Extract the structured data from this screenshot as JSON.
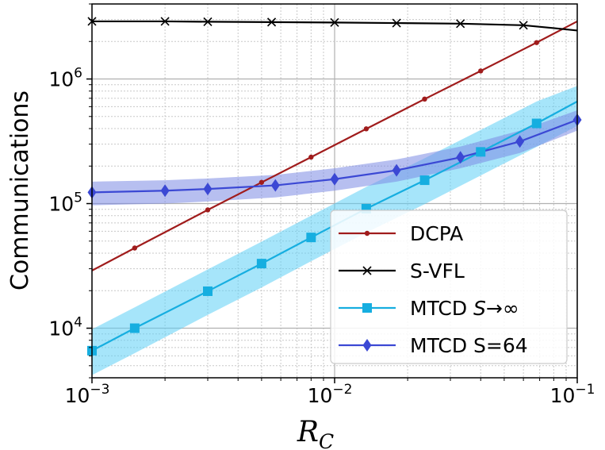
{
  "chart_data": {
    "type": "line",
    "title": "",
    "xlabel": "R",
    "xlabel_sub": "C",
    "ylabel": "Communications",
    "xscale": "log",
    "yscale": "log",
    "xlim": [
      0.001,
      0.1
    ],
    "ylim": [
      4000,
      4000000
    ],
    "grid": true,
    "legend_position": "lower-right",
    "x_ticks": [
      {
        "base": "10",
        "exp": "−3",
        "value": 0.001
      },
      {
        "base": "10",
        "exp": "−2",
        "value": 0.01
      },
      {
        "base": "10",
        "exp": "−1",
        "value": 0.1
      }
    ],
    "y_ticks": [
      {
        "base": "10",
        "exp": "4",
        "value": 10000
      },
      {
        "base": "10",
        "exp": "5",
        "value": 100000
      },
      {
        "base": "10",
        "exp": "6",
        "value": 1000000
      }
    ],
    "series": [
      {
        "name": "DCPA",
        "color": "#a01c1c",
        "marker": "dot",
        "x": [
          0.001,
          0.0015,
          0.003,
          0.005,
          0.008,
          0.0135,
          0.0235,
          0.04,
          0.068,
          0.1
        ],
        "values": [
          29000,
          44000,
          89000,
          148000,
          236000,
          398000,
          690000,
          1160000,
          1960000,
          2900000
        ],
        "marker_x": [
          0.0015,
          0.003,
          0.005,
          0.008,
          0.0135,
          0.0235,
          0.04,
          0.068
        ]
      },
      {
        "name": "S-VFL",
        "color": "#000000",
        "marker": "x",
        "x": [
          0.001,
          0.002,
          0.003,
          0.0055,
          0.01,
          0.018,
          0.033,
          0.06,
          0.08,
          0.1
        ],
        "values": [
          2900000,
          2900000,
          2880000,
          2860000,
          2840000,
          2810000,
          2780000,
          2700000,
          2560000,
          2450000
        ],
        "marker_x": [
          0.001,
          0.002,
          0.003,
          0.0055,
          0.01,
          0.018,
          0.033,
          0.06
        ]
      },
      {
        "name": "MTCD S→∞",
        "name_prefix": "MTCD ",
        "name_var": "S",
        "name_suffix": "→∞",
        "color": "#16aee0",
        "band_color": "#5dd0f5",
        "marker": "square",
        "x": [
          0.001,
          0.0015,
          0.003,
          0.005,
          0.008,
          0.0135,
          0.0235,
          0.04,
          0.068,
          0.1
        ],
        "values": [
          6600,
          10000,
          19800,
          33000,
          53500,
          91000,
          154000,
          260000,
          440000,
          660000
        ],
        "band_lower": [
          4200,
          6300,
          12800,
          21200,
          34500,
          58500,
          99000,
          168000,
          285000,
          420000
        ],
        "band_upper": [
          9800,
          14700,
          29600,
          49500,
          80000,
          136000,
          231000,
          390000,
          660000,
          880000
        ],
        "marker_x": [
          0.001,
          0.0015,
          0.003,
          0.005,
          0.008,
          0.0135,
          0.0235,
          0.04,
          0.068
        ]
      },
      {
        "name": "MTCD S=64",
        "color": "#3b48d4",
        "band_color": "#7b8ae4",
        "marker": "diamond",
        "x": [
          0.001,
          0.002,
          0.003,
          0.0057,
          0.01,
          0.018,
          0.033,
          0.058,
          0.1
        ],
        "values": [
          123000,
          127000,
          131000,
          140000,
          157000,
          185000,
          235000,
          315000,
          470000
        ],
        "band_lower": [
          97000,
          100000,
          104000,
          112000,
          127000,
          150000,
          192000,
          255000,
          385000
        ],
        "band_upper": [
          150000,
          154000,
          159000,
          170000,
          192000,
          226000,
          287000,
          385000,
          560000
        ],
        "marker_x": [
          0.001,
          0.002,
          0.003,
          0.0057,
          0.01,
          0.018,
          0.033,
          0.058,
          0.1
        ]
      }
    ]
  }
}
